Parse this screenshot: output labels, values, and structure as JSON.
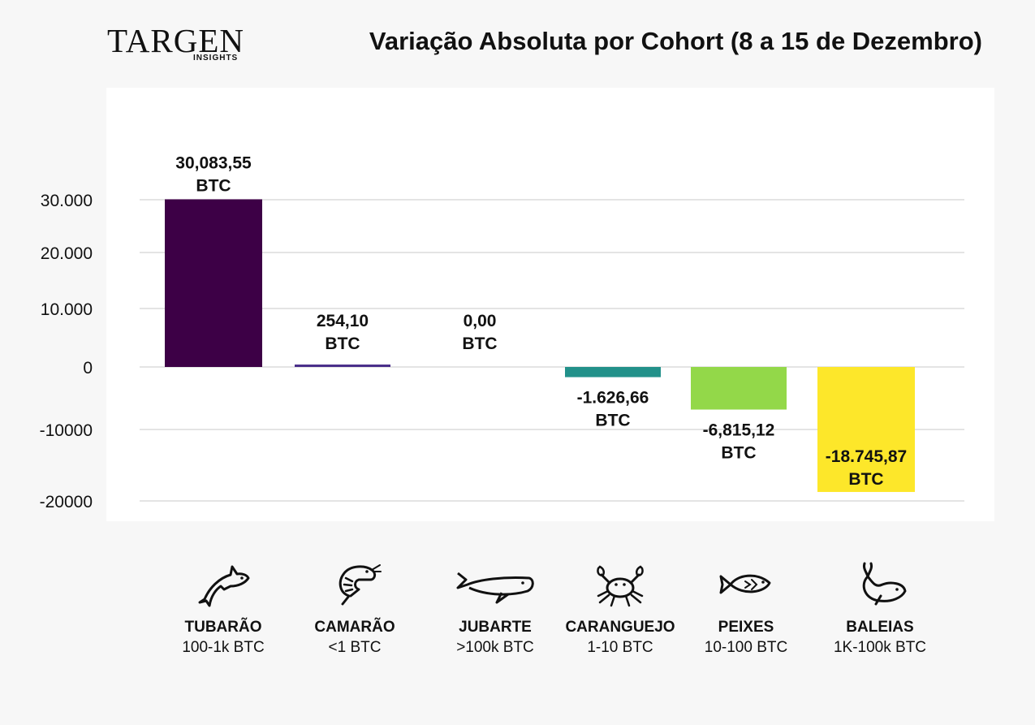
{
  "brand": {
    "name": "TARGEN",
    "tagline": "INSIGHTS"
  },
  "title": "Variação Absoluta por Cohort (8 a 15 de Dezembro)",
  "chart_data": {
    "type": "bar",
    "title": "Variação Absoluta por Cohort (8 a 15 de Dezembro)",
    "xlabel": "",
    "ylabel": "",
    "ylim": [
      -20000,
      30000
    ],
    "y_ticks": [
      30000,
      20000,
      10000,
      0,
      -10000,
      -20000
    ],
    "y_tick_labels": [
      "30.000",
      "20.000",
      "10.000",
      "0",
      "-10000",
      "-20000"
    ],
    "grid": true,
    "categories": [
      "TUBARÃO",
      "CAMARÃO",
      "JUBARTE",
      "CARANGUEJO",
      "PEIXES",
      "BALEIAS"
    ],
    "values": [
      30083.55,
      254.1,
      0.0,
      -1626.66,
      -6815.12,
      -18745.87
    ],
    "value_labels": [
      "30,083,55",
      "254,10",
      "0,00",
      "-1.626,66",
      "-6,815,12",
      "-18.745,87"
    ],
    "unit_label": "BTC",
    "colors": [
      "#3d0046",
      "#4a2f8a",
      "#cccccc",
      "#22918a",
      "#93d849",
      "#fde72a"
    ]
  },
  "cohorts": [
    {
      "name": "TUBARÃO",
      "range": "100-1k BTC",
      "icon": "shark-icon"
    },
    {
      "name": "CAMARÃO",
      "range": "<1 BTC",
      "icon": "shrimp-icon"
    },
    {
      "name": "JUBARTE",
      "range": ">100k BTC",
      "icon": "humpback-whale-icon"
    },
    {
      "name": "CARANGUEJO",
      "range": "1-10 BTC",
      "icon": "crab-icon"
    },
    {
      "name": "PEIXES",
      "range": "10-100 BTC",
      "icon": "fish-icon"
    },
    {
      "name": "BALEIAS",
      "range": "1K-100k BTC",
      "icon": "whale-icon"
    }
  ]
}
